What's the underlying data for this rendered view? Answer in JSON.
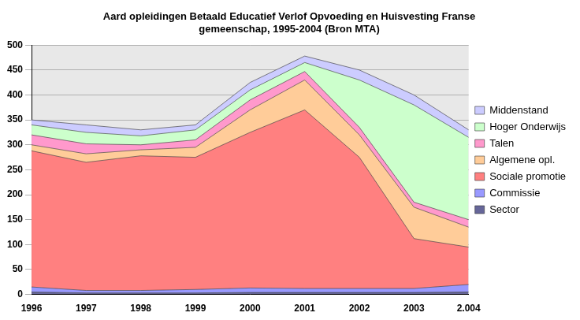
{
  "chart_data": {
    "type": "area",
    "title": [
      "Aard opleidingen Betaald Educatief Verlof Opvoeding en Huisvesting Franse",
      "gemeenschap, 1995-2004 (Bron MTA)"
    ],
    "categories": [
      "1996",
      "1997",
      "1998",
      "1999",
      "2000",
      "2001",
      "2002",
      "2003",
      "2.004"
    ],
    "stacked": true,
    "grid": true,
    "legend": "right",
    "ylim": [
      0,
      500
    ],
    "yticks": [
      0,
      50,
      100,
      150,
      200,
      250,
      300,
      350,
      400,
      450,
      500
    ],
    "series": [
      {
        "name": "Sector",
        "color": "#666699",
        "values": [
          5,
          3,
          3,
          3,
          4,
          4,
          4,
          4,
          5
        ]
      },
      {
        "name": "Commissie",
        "color": "#9999ff",
        "values": [
          10,
          5,
          5,
          7,
          9,
          8,
          8,
          8,
          15
        ]
      },
      {
        "name": "Sociale promotie",
        "color": "#ff8080",
        "values": [
          273,
          257,
          270,
          265,
          312,
          358,
          263,
          100,
          75
        ]
      },
      {
        "name": "Algemene opl.",
        "color": "#ffcc99",
        "values": [
          12,
          17,
          12,
          20,
          45,
          60,
          45,
          63,
          40
        ]
      },
      {
        "name": "Talen",
        "color": "#ff99cc",
        "values": [
          20,
          20,
          10,
          15,
          20,
          17,
          15,
          10,
          15
        ]
      },
      {
        "name": "Hoger Onderwijs",
        "color": "#ccffcc",
        "values": [
          20,
          23,
          18,
          20,
          20,
          18,
          95,
          195,
          165
        ]
      },
      {
        "name": "Middenstand",
        "color": "#ccccff",
        "values": [
          10,
          15,
          12,
          10,
          15,
          13,
          20,
          20,
          15
        ]
      }
    ]
  }
}
